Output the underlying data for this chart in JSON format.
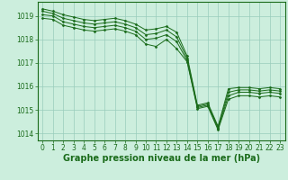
{
  "bg_color": "#cceedd",
  "grid_color": "#99ccbb",
  "line_color": "#1a6b1a",
  "marker_color": "#1a6b1a",
  "xlabel": "Graphe pression niveau de la mer (hPa)",
  "xlabel_fontsize": 7,
  "xlabel_color": "#1a6b1a",
  "tick_color": "#1a6b1a",
  "tick_fontsize": 5.5,
  "yticks": [
    1014,
    1015,
    1016,
    1017,
    1018,
    1019
  ],
  "xticks": [
    0,
    1,
    2,
    3,
    4,
    5,
    6,
    7,
    8,
    9,
    10,
    11,
    12,
    13,
    14,
    15,
    16,
    17,
    18,
    19,
    20,
    21,
    22,
    23
  ],
  "xlim": [
    -0.5,
    23.5
  ],
  "ylim": [
    1013.7,
    1019.6
  ],
  "series": [
    [
      1019.3,
      1019.2,
      1019.05,
      1018.95,
      1018.85,
      1018.8,
      1018.85,
      1018.9,
      1018.8,
      1018.65,
      1018.4,
      1018.45,
      1018.55,
      1018.3,
      1017.3,
      1015.2,
      1015.3,
      1014.3,
      1015.9,
      1015.95,
      1015.95,
      1015.9,
      1015.95,
      1015.9
    ],
    [
      1019.2,
      1019.1,
      1018.9,
      1018.8,
      1018.7,
      1018.65,
      1018.7,
      1018.75,
      1018.65,
      1018.5,
      1018.2,
      1018.25,
      1018.4,
      1018.1,
      1017.2,
      1015.15,
      1015.25,
      1014.25,
      1015.75,
      1015.85,
      1015.85,
      1015.8,
      1015.85,
      1015.8
    ],
    [
      1019.05,
      1019.0,
      1018.75,
      1018.65,
      1018.55,
      1018.5,
      1018.55,
      1018.6,
      1018.5,
      1018.35,
      1018.0,
      1018.05,
      1018.2,
      1017.9,
      1017.1,
      1015.1,
      1015.2,
      1014.2,
      1015.6,
      1015.75,
      1015.75,
      1015.7,
      1015.75,
      1015.7
    ],
    [
      1018.9,
      1018.85,
      1018.6,
      1018.5,
      1018.4,
      1018.35,
      1018.4,
      1018.45,
      1018.35,
      1018.2,
      1017.8,
      1017.7,
      1018.0,
      1017.6,
      1017.05,
      1015.05,
      1015.15,
      1014.15,
      1015.45,
      1015.6,
      1015.6,
      1015.55,
      1015.6,
      1015.55
    ]
  ]
}
